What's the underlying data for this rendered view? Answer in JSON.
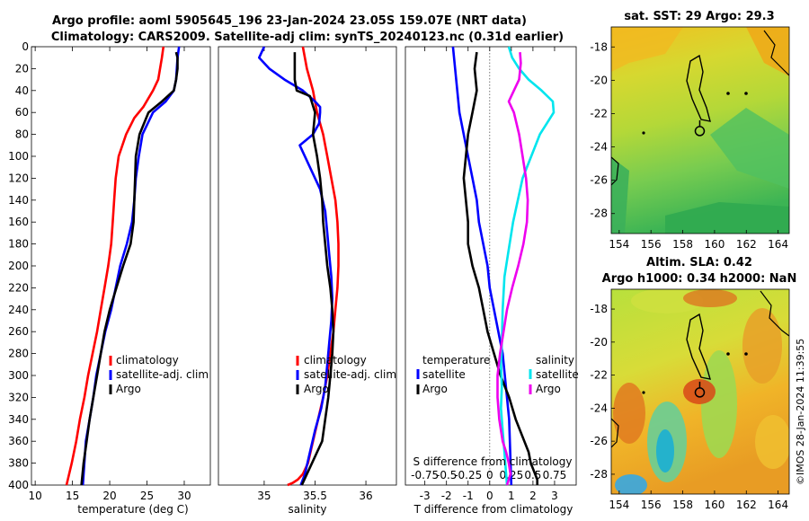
{
  "page_title_line1": "Argo profile: aoml 5905645_196 23-Jan-2024 23.05S 159.07E (NRT data)",
  "page_title_line2": "Climatology: CARS2009. Satellite-adj clim: synTS_20240123.nc (0.31d earlier)",
  "timestamp": "©IMOS 28-Jan-2024 11:39:55",
  "colors": {
    "climatology": "#ff0000",
    "satellite": "#0000ff",
    "argo": "#000000",
    "t_diff": "#00e5ee",
    "s_diff": "#ee00ee"
  },
  "chart_data": [
    {
      "type": "line",
      "id": "temperature-profile",
      "xlabel": "temperature (deg C)",
      "ylabel": "",
      "xlim": [
        9.5,
        33.5
      ],
      "ylim": [
        400,
        0
      ],
      "xticks": [
        "10",
        "15",
        "20",
        "25",
        "30"
      ],
      "yticks": [
        "0",
        "20",
        "40",
        "60",
        "80",
        "100",
        "120",
        "140",
        "160",
        "180",
        "200",
        "220",
        "240",
        "260",
        "280",
        "300",
        "320",
        "340",
        "360",
        "380",
        "400"
      ],
      "legend": {
        "placement": "middle-right",
        "entries": [
          "climatology",
          "satellite-adj. clim",
          "Argo"
        ]
      },
      "series": [
        {
          "name": "climatology",
          "x": [
            27.2,
            27.0,
            26.5,
            25.8,
            24.5,
            23.3,
            22.2,
            21.2,
            20.8,
            20.6,
            20.4,
            20.2,
            19.8,
            19.3,
            18.8,
            18.3,
            17.7,
            17.1,
            16.6,
            16.0,
            15.5,
            14.9,
            14.2
          ],
          "depth": [
            0,
            10,
            30,
            40,
            55,
            65,
            80,
            100,
            120,
            140,
            160,
            180,
            200,
            220,
            240,
            260,
            280,
            300,
            320,
            340,
            360,
            380,
            400
          ]
        },
        {
          "name": "satellite-adj. clim",
          "x": [
            29.3,
            29.1,
            28.9,
            28.6,
            27.5,
            25.8,
            24.4,
            23.9,
            23.5,
            23.3,
            23.0,
            22.3,
            21.4,
            20.8,
            20.2,
            19.4,
            18.8,
            18.2,
            17.8,
            17.3,
            16.8,
            16.4
          ],
          "depth": [
            0,
            10,
            30,
            40,
            50,
            60,
            80,
            100,
            120,
            140,
            160,
            180,
            200,
            220,
            240,
            260,
            280,
            300,
            320,
            340,
            360,
            400
          ]
        },
        {
          "name": "Argo",
          "x": [
            28.9,
            29.1,
            29.1,
            28.9,
            28.6,
            27.0,
            25.2,
            24.0,
            23.5,
            23.4,
            23.3,
            23.2,
            22.8,
            21.8,
            20.9,
            20.0,
            19.3,
            18.8,
            18.3,
            17.8,
            17.3,
            16.9,
            16.5,
            16.2
          ],
          "depth": [
            5,
            10,
            20,
            30,
            40,
            50,
            60,
            80,
            100,
            120,
            140,
            160,
            180,
            200,
            220,
            240,
            260,
            280,
            300,
            320,
            340,
            360,
            380,
            400
          ]
        }
      ]
    },
    {
      "type": "line",
      "id": "salinity-profile",
      "xlabel": "salinity",
      "ylabel": "",
      "xlim": [
        34.55,
        36.3
      ],
      "ylim": [
        400,
        0
      ],
      "xticks": [
        "35",
        "35.5",
        "36"
      ],
      "legend": {
        "placement": "middle-right",
        "entries": [
          "climatology",
          "satellite-adj. clim",
          "Argo"
        ]
      },
      "series": [
        {
          "name": "climatology",
          "x": [
            35.38,
            35.42,
            35.48,
            35.52,
            35.58,
            35.62,
            35.66,
            35.7,
            35.72,
            35.73,
            35.73,
            35.72,
            35.7,
            35.68,
            35.65,
            35.62,
            35.58,
            35.53,
            35.48,
            35.43,
            35.38,
            35.33,
            35.28,
            35.23
          ],
          "depth": [
            0,
            20,
            40,
            60,
            80,
            100,
            120,
            140,
            160,
            180,
            200,
            220,
            240,
            260,
            280,
            300,
            320,
            340,
            360,
            380,
            390,
            395,
            398,
            400
          ]
        },
        {
          "name": "satellite-adj. clim",
          "x": [
            35.0,
            34.95,
            35.05,
            35.2,
            35.38,
            35.5,
            35.55,
            35.55,
            35.54,
            35.48,
            35.35,
            35.45,
            35.55,
            35.6,
            35.62,
            35.64,
            35.66,
            35.67,
            35.66,
            35.64,
            35.62,
            35.6,
            35.56,
            35.5,
            35.45,
            35.4,
            35.36
          ],
          "depth": [
            0,
            10,
            20,
            30,
            40,
            50,
            55,
            60,
            70,
            80,
            90,
            110,
            130,
            150,
            170,
            190,
            210,
            230,
            250,
            270,
            290,
            310,
            330,
            350,
            370,
            390,
            400
          ]
        },
        {
          "name": "Argo",
          "x": [
            35.3,
            35.3,
            35.3,
            35.32,
            35.45,
            35.5,
            35.48,
            35.52,
            35.55,
            35.57,
            35.58,
            35.6,
            35.62,
            35.65,
            35.67,
            35.68,
            35.67,
            35.65,
            35.63,
            35.6,
            35.57,
            35.52,
            35.47,
            35.42,
            35.37
          ],
          "depth": [
            5,
            20,
            30,
            40,
            45,
            60,
            80,
            100,
            120,
            140,
            160,
            180,
            200,
            220,
            240,
            260,
            280,
            300,
            320,
            340,
            360,
            370,
            380,
            390,
            400
          ]
        }
      ]
    },
    {
      "type": "line",
      "id": "difference-profile",
      "xlabel": "T difference from climatology",
      "x2label": "S difference from climatology",
      "xlim": [
        -3.9,
        4.0
      ],
      "x2lim": [
        -0.975,
        1.0
      ],
      "ylim": [
        400,
        0
      ],
      "xticks": [
        "-3",
        "-2",
        "-1",
        "0",
        "1",
        "2",
        "3"
      ],
      "x2ticks": [
        "-0.75",
        "-0.5",
        "-0.25",
        "0",
        "0.25",
        "0.5",
        "0.75"
      ],
      "legend_temperature": {
        "title": "temperature",
        "entries": [
          "satellite",
          "Argo"
        ]
      },
      "legend_salinity": {
        "title": "salinity",
        "entries": [
          "satellite",
          "Argo"
        ]
      },
      "series": [
        {
          "name": "T diff satellite",
          "axis": "T",
          "x": [
            -1.7,
            -1.6,
            -1.5,
            -1.4,
            -1.2,
            -1.0,
            -0.8,
            -0.6,
            -0.5,
            -0.3,
            -0.1,
            0.0,
            0.2,
            0.4,
            0.6,
            0.7,
            0.8,
            0.9,
            1.0
          ],
          "depth": [
            0,
            20,
            40,
            60,
            80,
            100,
            120,
            140,
            160,
            180,
            200,
            220,
            240,
            260,
            280,
            300,
            320,
            340,
            400
          ]
        },
        {
          "name": "T diff Argo",
          "axis": "T",
          "x": [
            -0.6,
            -0.7,
            -0.6,
            -0.8,
            -1.0,
            -1.1,
            -1.2,
            -1.1,
            -1.0,
            -1.0,
            -0.8,
            -0.5,
            -0.3,
            -0.1,
            0.2,
            0.5,
            0.9,
            1.2,
            1.6,
            1.8,
            1.9,
            2.0,
            2.1,
            2.2,
            2.2
          ],
          "depth": [
            5,
            20,
            40,
            60,
            80,
            100,
            120,
            140,
            160,
            180,
            200,
            220,
            240,
            260,
            280,
            300,
            320,
            340,
            360,
            370,
            380,
            385,
            390,
            395,
            400
          ]
        },
        {
          "name": "S diff satellite",
          "axis": "S",
          "x": [
            0.22,
            0.26,
            0.34,
            0.45,
            0.6,
            0.73,
            0.74,
            0.66,
            0.58,
            0.38,
            0.27,
            0.21,
            0.17,
            0.15,
            0.14,
            0.13,
            0.14,
            0.13,
            0.15,
            0.17,
            0.18,
            0.19,
            0.2
          ],
          "depth": [
            0,
            10,
            20,
            30,
            40,
            50,
            60,
            70,
            80,
            120,
            160,
            190,
            210,
            240,
            270,
            290,
            310,
            330,
            350,
            370,
            380,
            390,
            400
          ]
        },
        {
          "name": "S diff Argo",
          "axis": "S",
          "x": [
            0.35,
            0.36,
            0.34,
            0.28,
            0.22,
            0.28,
            0.34,
            0.38,
            0.42,
            0.44,
            0.43,
            0.39,
            0.33,
            0.26,
            0.2,
            0.16,
            0.12,
            0.09,
            0.09,
            0.11,
            0.13,
            0.15,
            0.19,
            0.22,
            0.24,
            0.22,
            0.2
          ],
          "depth": [
            5,
            15,
            30,
            40,
            50,
            60,
            80,
            100,
            120,
            140,
            160,
            180,
            200,
            220,
            240,
            260,
            280,
            300,
            320,
            340,
            350,
            360,
            370,
            380,
            390,
            395,
            400
          ]
        }
      ]
    },
    {
      "type": "heatmap",
      "id": "sst-map",
      "title": "sat. SST: 29 Argo: 29.3",
      "xlim": [
        153.5,
        164.7
      ],
      "ylim": [
        -29.2,
        -16.8
      ],
      "xticks": [
        "154",
        "156",
        "158",
        "160",
        "162",
        "164"
      ],
      "yticks": [
        "-18",
        "-20",
        "-22",
        "-24",
        "-26",
        "-28"
      ],
      "marker": {
        "lon": 159.07,
        "lat": -23.05
      }
    },
    {
      "type": "heatmap",
      "id": "sla-map",
      "title": "Altim. SLA: 0.42",
      "subtitle": "Argo h1000: 0.34 h2000: NaN",
      "xlim": [
        153.5,
        164.7
      ],
      "ylim": [
        -29.2,
        -16.8
      ],
      "xticks": [
        "154",
        "156",
        "158",
        "160",
        "162",
        "164"
      ],
      "yticks": [
        "-18",
        "-20",
        "-22",
        "-24",
        "-26",
        "-28"
      ],
      "marker": {
        "lon": 159.07,
        "lat": -23.05
      }
    }
  ]
}
